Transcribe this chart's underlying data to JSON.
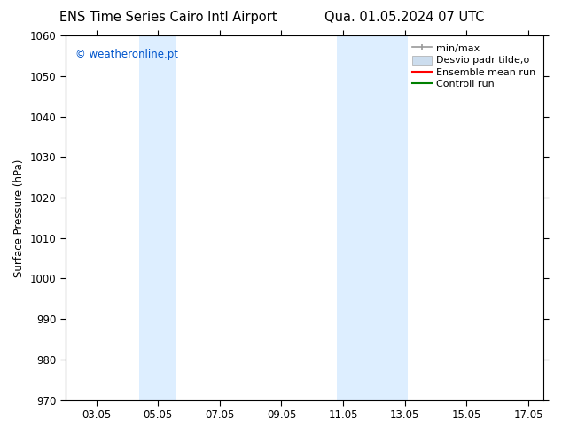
{
  "title_left": "ENS Time Series Cairo Intl Airport",
  "title_right": "Qua. 01.05.2024 07 UTC",
  "ylabel": "Surface Pressure (hPa)",
  "ylim": [
    970,
    1060
  ],
  "yticks": [
    970,
    980,
    990,
    1000,
    1010,
    1020,
    1030,
    1040,
    1050,
    1060
  ],
  "xlim": [
    2.0,
    17.5
  ],
  "xtick_labels": [
    "03.05",
    "05.05",
    "07.05",
    "09.05",
    "11.05",
    "13.05",
    "15.05",
    "17.05"
  ],
  "xtick_positions": [
    3,
    5,
    7,
    9,
    11,
    13,
    15,
    17
  ],
  "watermark": "© weatheronline.pt",
  "watermark_color": "#0055cc",
  "shaded_regions": [
    {
      "xstart": 4.4,
      "xend": 5.6,
      "color": "#ddeeff"
    },
    {
      "xstart": 10.8,
      "xend": 13.1,
      "color": "#ddeeff"
    }
  ],
  "legend_items": [
    {
      "label": "min/max",
      "color": "#999999",
      "lw": 1.2
    },
    {
      "label": "Desvio padr tilde;o",
      "color": "#ccddee",
      "lw": 8
    },
    {
      "label": "Ensemble mean run",
      "color": "#ff0000",
      "lw": 1.5
    },
    {
      "label": "Controll run",
      "color": "#008000",
      "lw": 1.5
    }
  ],
  "bg_color": "#ffffff",
  "plot_bg_color": "#ffffff",
  "border_color": "#000000",
  "tick_color": "#000000",
  "font_size": 8.5,
  "title_font_size": 10.5
}
